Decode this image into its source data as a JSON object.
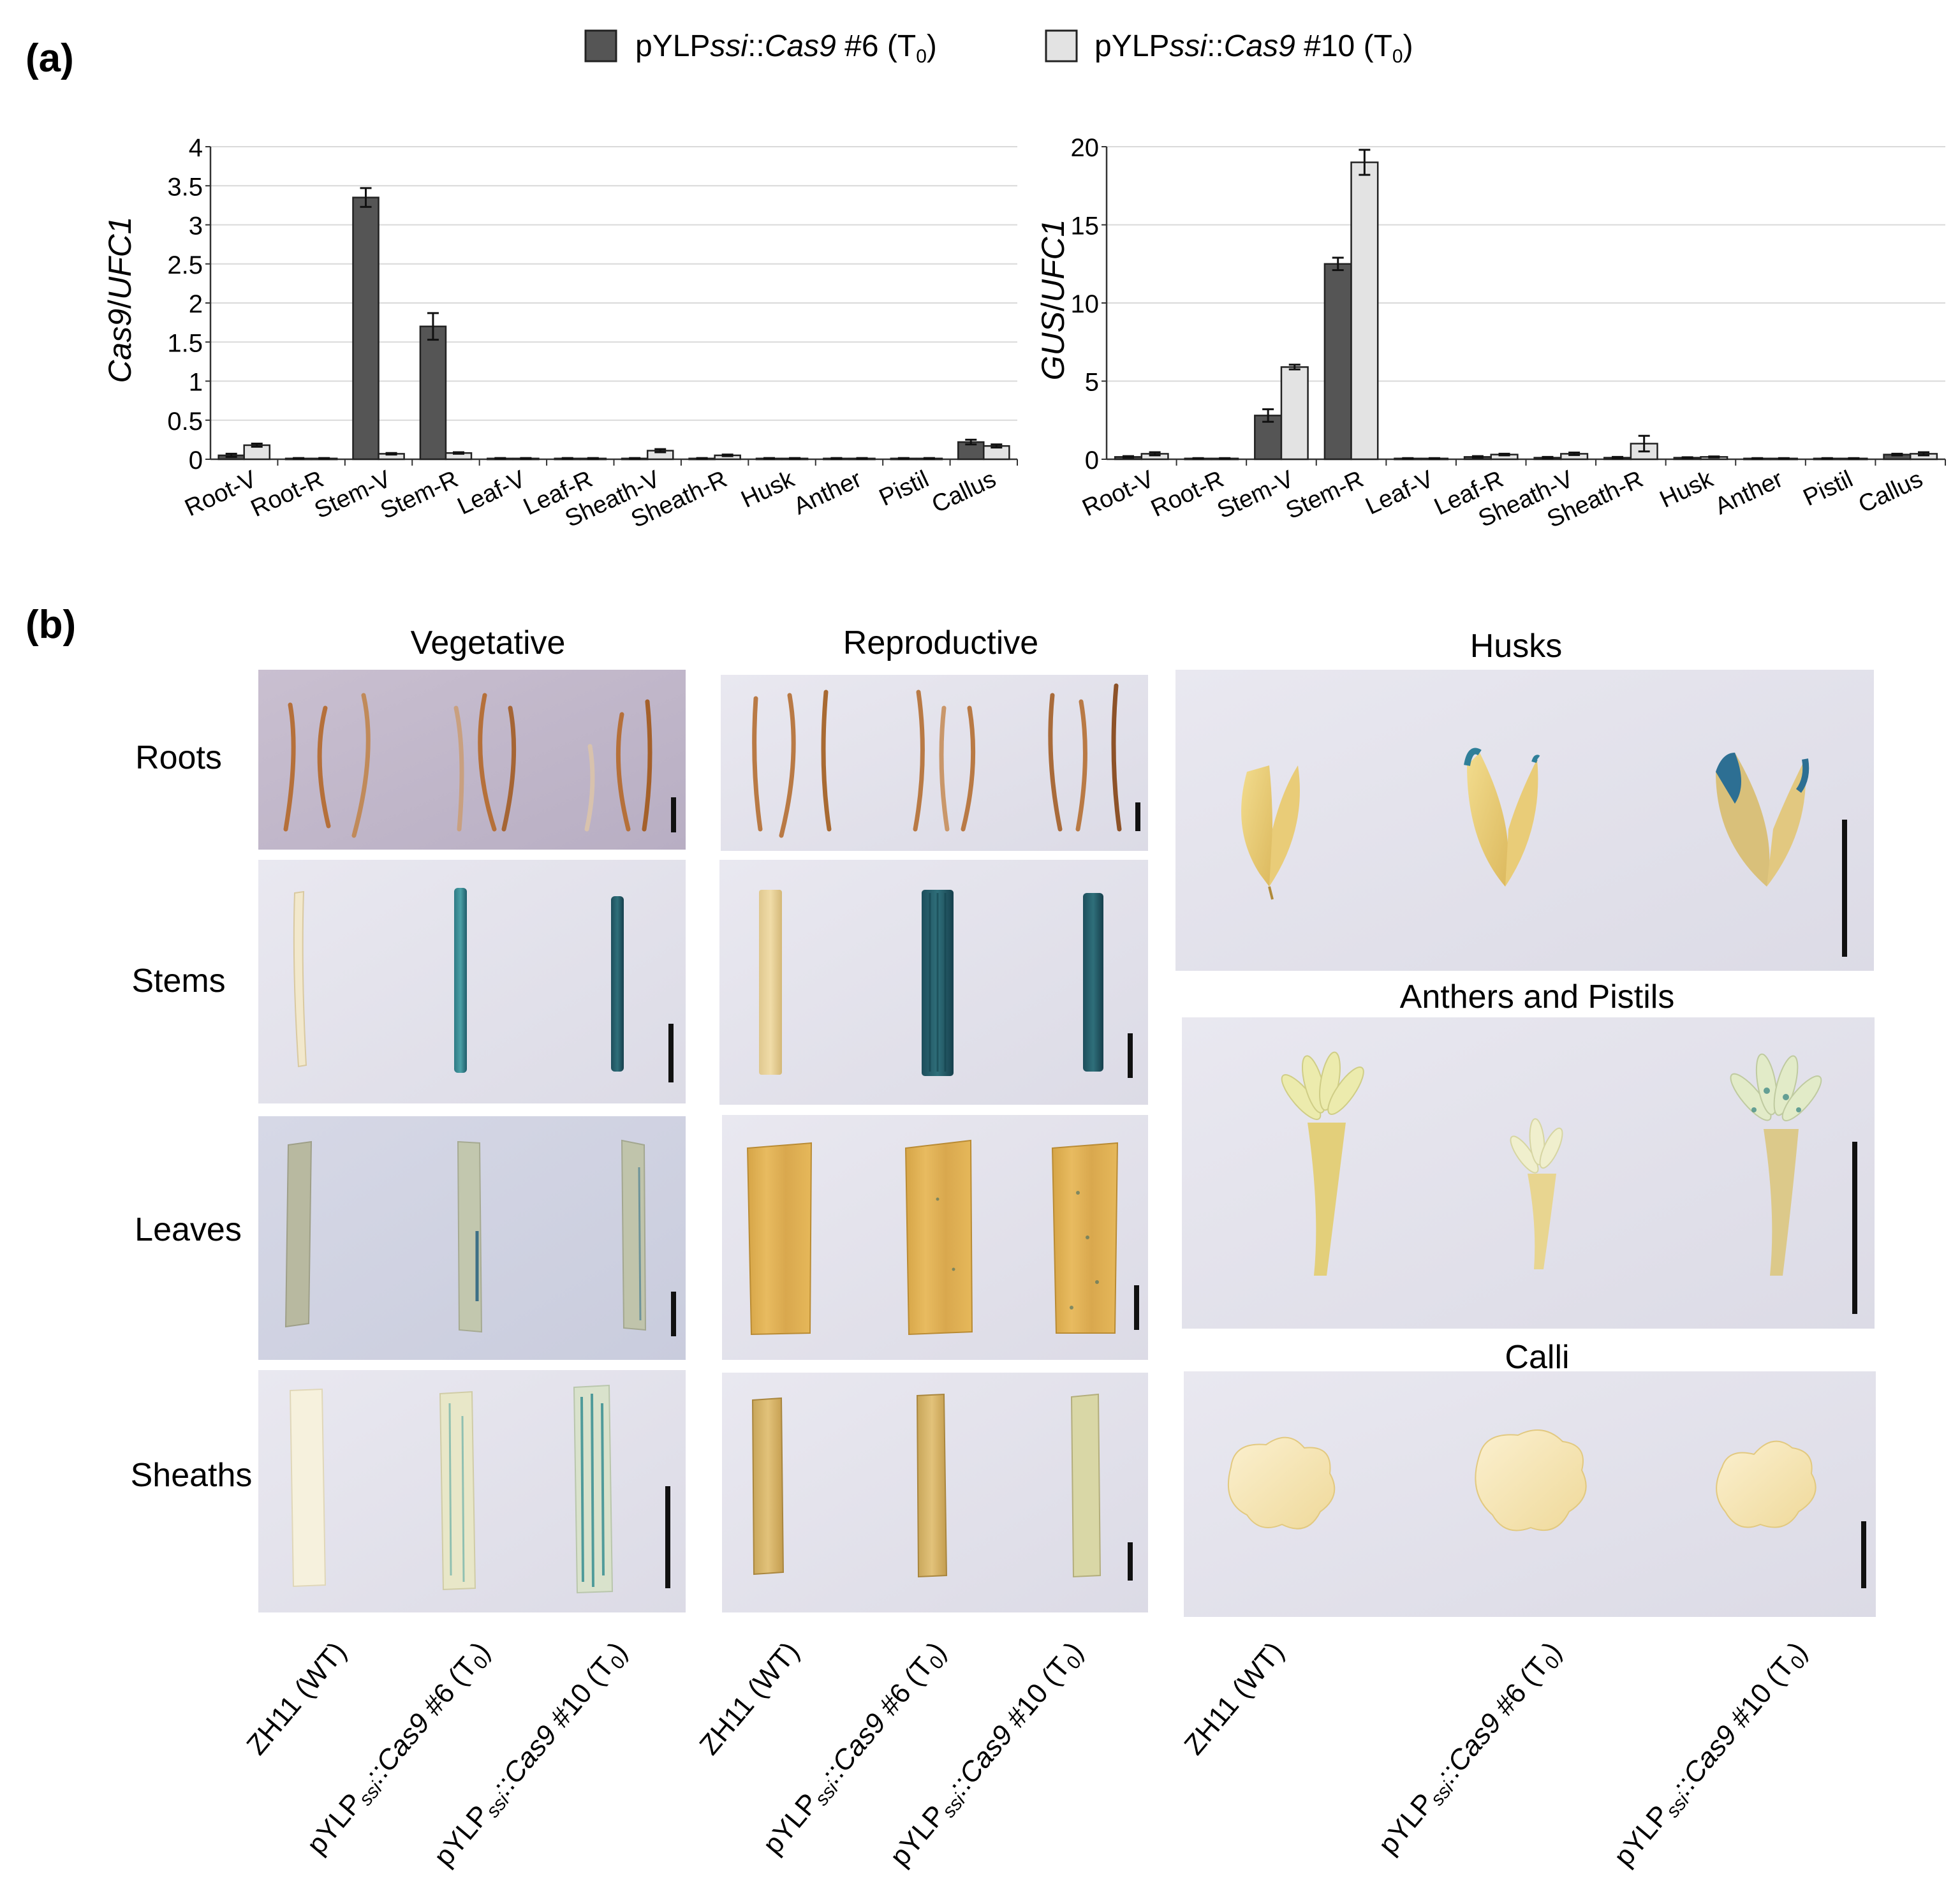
{
  "panel_a_label": "(a)",
  "panel_b_label": "(b)",
  "legend": {
    "entries": [
      {
        "prefix": "pYLP",
        "italic1": "ssi",
        "mid": "::",
        "italic2": "Cas9",
        "suffix": " #6 (T",
        "sub": "0",
        "close": ")",
        "color": "#555555"
      },
      {
        "prefix": "pYLP",
        "italic1": "ssi",
        "mid": "::",
        "italic2": "Cas9",
        "suffix": " #10 (T",
        "sub": "0",
        "close": ")",
        "color": "#e3e3e3"
      }
    ]
  },
  "chart_data": [
    {
      "type": "bar",
      "ylabel_italic": "Cas9",
      "ylabel_rest": "/",
      "ylabel_italic2": "UFC1",
      "ylim": [
        0,
        4
      ],
      "yticks": [
        "0",
        "0.5",
        "1",
        "1.5",
        "2",
        "2.5",
        "3",
        "3.5",
        "4"
      ],
      "grid": true,
      "categories": [
        "Root-V",
        "Root-R",
        "Stem-V",
        "Stem-R",
        "Leaf-V",
        "Leaf-R",
        "Sheath-V",
        "Sheath-R",
        "Husk",
        "Anther",
        "Pistil",
        "Callus"
      ],
      "series": [
        {
          "name": "pYLPssi::Cas9 #6 (T0)",
          "values": [
            0.05,
            0.01,
            3.35,
            1.7,
            0.01,
            0.01,
            0.01,
            0.01,
            0.01,
            0.01,
            0.01,
            0.22
          ],
          "errors": [
            0.02,
            0.005,
            0.12,
            0.17,
            0.005,
            0.005,
            0.005,
            0.005,
            0.005,
            0.005,
            0.005,
            0.03
          ]
        },
        {
          "name": "pYLPssi::Cas9 #10 (T0)",
          "values": [
            0.18,
            0.01,
            0.07,
            0.08,
            0.01,
            0.01,
            0.11,
            0.05,
            0.01,
            0.01,
            0.01,
            0.17
          ],
          "errors": [
            0.02,
            0.005,
            0.01,
            0.01,
            0.005,
            0.005,
            0.02,
            0.01,
            0.005,
            0.005,
            0.005,
            0.02
          ]
        }
      ]
    },
    {
      "type": "bar",
      "ylabel_italic": "GUS",
      "ylabel_rest": "/",
      "ylabel_italic2": "UFC1",
      "ylim": [
        0,
        20
      ],
      "yticks": [
        "0",
        "5",
        "10",
        "15",
        "20"
      ],
      "grid": true,
      "categories": [
        "Root-V",
        "Root-R",
        "Stem-V",
        "Stem-R",
        "Leaf-V",
        "Leaf-R",
        "Sheath-V",
        "Sheath-R",
        "Husk",
        "Anther",
        "Pistil",
        "Callus"
      ],
      "series": [
        {
          "name": "pYLPssi::Cas9 #6 (T0)",
          "values": [
            0.15,
            0.05,
            2.8,
            12.5,
            0.05,
            0.15,
            0.1,
            0.1,
            0.1,
            0.05,
            0.05,
            0.3
          ],
          "errors": [
            0.05,
            0.02,
            0.4,
            0.4,
            0.02,
            0.05,
            0.05,
            0.05,
            0.03,
            0.02,
            0.02,
            0.05
          ]
        },
        {
          "name": "pYLPssi::Cas9 #10 (T0)",
          "values": [
            0.35,
            0.05,
            5.9,
            19.0,
            0.05,
            0.3,
            0.35,
            1.0,
            0.15,
            0.05,
            0.05,
            0.35
          ],
          "errors": [
            0.1,
            0.02,
            0.15,
            0.8,
            0.02,
            0.05,
            0.08,
            0.5,
            0.03,
            0.02,
            0.02,
            0.1
          ]
        }
      ]
    }
  ],
  "photos": {
    "headers": {
      "vegetative": "Vegetative",
      "reproductive": "Reproductive",
      "husks": "Husks",
      "anthers": "Anthers and Pistils",
      "calli": "Calli"
    },
    "row_labels": [
      "Roots",
      "Stems",
      "Leaves",
      "Sheaths"
    ],
    "genotypes": [
      {
        "main": "ZH11 (WT)"
      },
      {
        "prefix": "pYLP",
        "sub": "ssi",
        "mid": "::",
        "ital": "Cas9",
        "suffix": " #6 (T",
        "sub2": "0",
        "close": ")"
      },
      {
        "prefix": "pYLP",
        "sub": "ssi",
        "mid": "::",
        "ital": "Cas9",
        "suffix": " #10 (T",
        "sub2": "0",
        "close": ")"
      }
    ]
  }
}
